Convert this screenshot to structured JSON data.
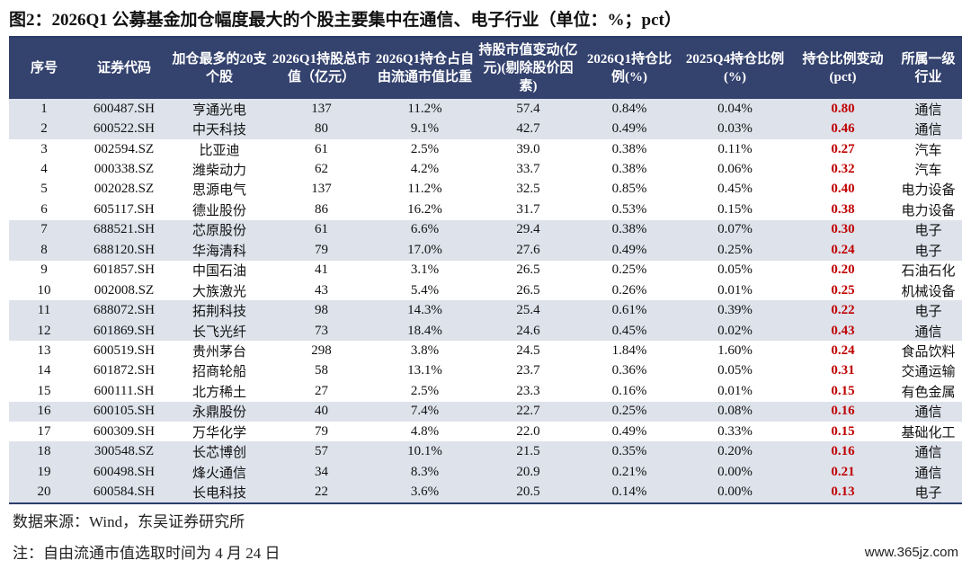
{
  "title": "图2：2026Q1 公募基金加仓幅度最大的个股主要集中在通信、电子行业（单位：%；pct）",
  "table": {
    "headers": [
      "序号",
      "证券代码",
      "加仓最多的20支个股",
      "2026Q1持股总市值（亿元）",
      "2026Q1持仓占自由流通市值比重",
      "持股市值变动(亿元)(剔除股价因素)",
      "2026Q1持仓比例(%)",
      "2025Q4持仓比例(%)",
      "持仓比例变动(pct)",
      "所属一级行业"
    ],
    "rows": [
      [
        "1",
        "600487.SH",
        "亨通光电",
        "137",
        "11.2%",
        "57.4",
        "0.84%",
        "0.04%",
        "0.80",
        "通信"
      ],
      [
        "2",
        "600522.SH",
        "中天科技",
        "80",
        "9.1%",
        "42.7",
        "0.49%",
        "0.03%",
        "0.46",
        "通信"
      ],
      [
        "3",
        "002594.SZ",
        "比亚迪",
        "61",
        "2.5%",
        "39.0",
        "0.38%",
        "0.11%",
        "0.27",
        "汽车"
      ],
      [
        "4",
        "000338.SZ",
        "潍柴动力",
        "62",
        "4.2%",
        "33.7",
        "0.38%",
        "0.06%",
        "0.32",
        "汽车"
      ],
      [
        "5",
        "002028.SZ",
        "思源电气",
        "137",
        "11.2%",
        "32.5",
        "0.85%",
        "0.45%",
        "0.40",
        "电力设备"
      ],
      [
        "6",
        "605117.SH",
        "德业股份",
        "86",
        "16.2%",
        "31.7",
        "0.53%",
        "0.15%",
        "0.38",
        "电力设备"
      ],
      [
        "7",
        "688521.SH",
        "芯原股份",
        "61",
        "6.6%",
        "29.4",
        "0.38%",
        "0.07%",
        "0.30",
        "电子"
      ],
      [
        "8",
        "688120.SH",
        "华海清科",
        "79",
        "17.0%",
        "27.6",
        "0.49%",
        "0.25%",
        "0.24",
        "电子"
      ],
      [
        "9",
        "601857.SH",
        "中国石油",
        "41",
        "3.1%",
        "26.5",
        "0.25%",
        "0.05%",
        "0.20",
        "石油石化"
      ],
      [
        "10",
        "002008.SZ",
        "大族激光",
        "43",
        "5.4%",
        "26.5",
        "0.26%",
        "0.01%",
        "0.25",
        "机械设备"
      ],
      [
        "11",
        "688072.SH",
        "拓荆科技",
        "98",
        "14.3%",
        "25.4",
        "0.61%",
        "0.39%",
        "0.22",
        "电子"
      ],
      [
        "12",
        "601869.SH",
        "长飞光纤",
        "73",
        "18.4%",
        "24.6",
        "0.45%",
        "0.02%",
        "0.43",
        "通信"
      ],
      [
        "13",
        "600519.SH",
        "贵州茅台",
        "298",
        "3.8%",
        "24.5",
        "1.84%",
        "1.60%",
        "0.24",
        "食品饮料"
      ],
      [
        "14",
        "601872.SH",
        "招商轮船",
        "58",
        "13.1%",
        "23.7",
        "0.36%",
        "0.05%",
        "0.31",
        "交通运输"
      ],
      [
        "15",
        "600111.SH",
        "北方稀土",
        "27",
        "2.5%",
        "23.3",
        "0.16%",
        "0.01%",
        "0.15",
        "有色金属"
      ],
      [
        "16",
        "600105.SH",
        "永鼎股份",
        "40",
        "7.4%",
        "22.7",
        "0.25%",
        "0.08%",
        "0.16",
        "通信"
      ],
      [
        "17",
        "600309.SH",
        "万华化学",
        "79",
        "4.8%",
        "22.0",
        "0.49%",
        "0.33%",
        "0.15",
        "基础化工"
      ],
      [
        "18",
        "300548.SZ",
        "长芯博创",
        "57",
        "10.1%",
        "21.5",
        "0.35%",
        "0.20%",
        "0.16",
        "通信"
      ],
      [
        "19",
        "600498.SH",
        "烽火通信",
        "34",
        "8.3%",
        "20.9",
        "0.21%",
        "0.00%",
        "0.21",
        "通信"
      ],
      [
        "20",
        "600584.SH",
        "长电科技",
        "22",
        "3.6%",
        "20.5",
        "0.14%",
        "0.00%",
        "0.13",
        "电子"
      ]
    ],
    "shaded_groups": [
      1,
      2,
      7,
      8,
      11,
      12,
      16,
      18,
      19,
      20
    ],
    "change_color": "#c00000",
    "header_color": "#34426e",
    "shade_color": "#dde2eb"
  },
  "source": "数据来源：Wind，东吴证券研究所",
  "note": "注：自由流通市值选取时间为 4 月 24 日",
  "watermark": "www.365jz.com"
}
